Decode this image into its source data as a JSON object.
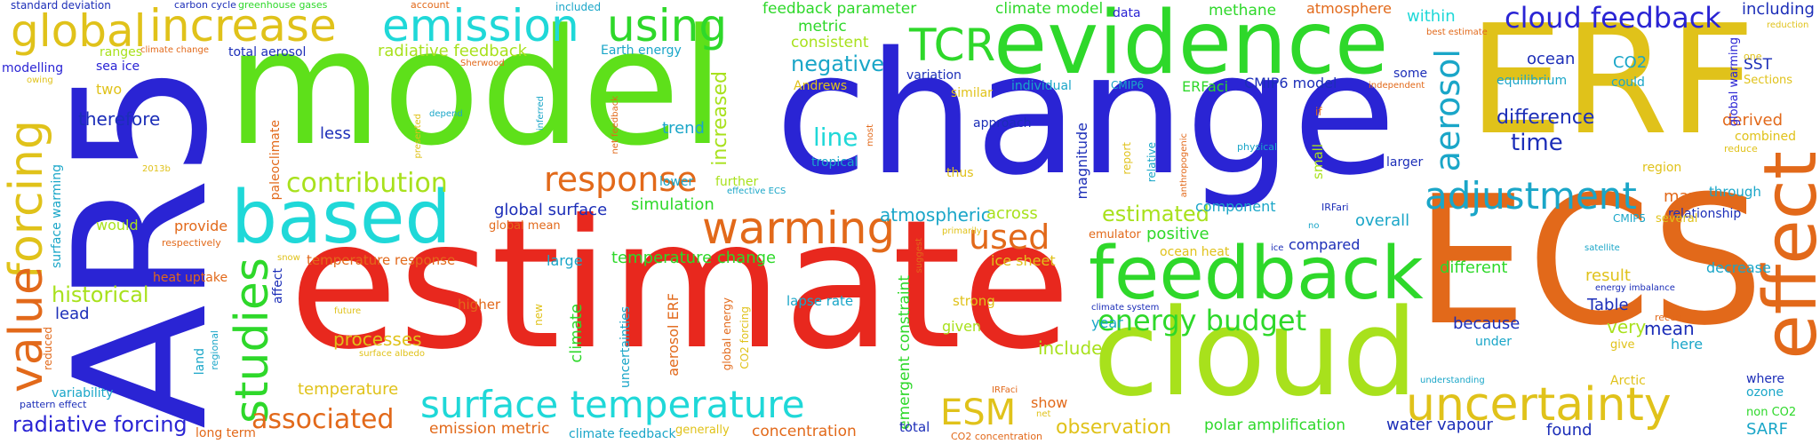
{
  "palette": {
    "red": "#e8281e",
    "blue": "#2a24d4",
    "green": "#5ee01a",
    "lime": "#a8e11c",
    "yellow": "#e0c21a",
    "orange": "#e2691a",
    "cyan": "#1fd8d8",
    "teal": "#1aa6c8",
    "bright_green": "#2ed82a",
    "navy": "#1c2eb8"
  },
  "words": {
    "estimate": "estimate",
    "change": "change",
    "model": "model",
    "ECS": "ECS",
    "ERF": "ERF",
    "AR5": "AR5",
    "cloud": "cloud",
    "evidence": "evidence",
    "feedback": "feedback",
    "based": "based",
    "effect": "effect",
    "emission": "emission",
    "increase": "increase",
    "using": "using",
    "forcing": "forcing",
    "value": "value",
    "studies": "studies",
    "global": "global",
    "uncertainty": "uncertainty",
    "TCR": "TCR",
    "warming": "warming",
    "response": "response",
    "adjustment": "adjustment",
    "surface_temperature": "surface temperature",
    "cloud_feedback": "cloud feedback",
    "contribution": "contribution",
    "aerosol": "aerosol",
    "used": "used",
    "energy_budget": "energy budget",
    "associated": "associated",
    "ESM": "ESM",
    "radiative_forcing": "radiative forcing",
    "historical": "historical",
    "time": "time",
    "difference": "difference",
    "line": "line",
    "negative": "negative",
    "estimated": "estimated",
    "atmospheric": "atmospheric",
    "across": "across",
    "processes": "processes",
    "temperature": "temperature",
    "include": "include",
    "observation": "observation",
    "emission_metric": "emission metric",
    "polar_amplification": "polar amplification",
    "water_vapour": "water vapour",
    "found": "found",
    "SARF": "SARF",
    "mean": "mean",
    "here": "here",
    "very": "very",
    "because": "because",
    "under": "under",
    "result": "result",
    "Table": "Table",
    "different": "different",
    "decrease": "decrease",
    "derived": "derived",
    "combined": "combined",
    "reduce": "reduce",
    "region": "region",
    "may": "may",
    "through": "through",
    "relationship": "relationship",
    "several": "several",
    "CMIP5": "CMIP5",
    "satellite": "satellite",
    "ocean": "ocean",
    "CO2": "CO2",
    "equilibrium": "equilibrium",
    "could": "could",
    "global_warming": "global warming",
    "SST": "SST",
    "Sections": "Sections",
    "one": "one",
    "including": "including",
    "reduction": "reduction",
    "within": "within",
    "best_estimate": "best estimate",
    "some": "some",
    "independent": "independent",
    "atmosphere": "atmosphere",
    "methane": "methane",
    "data": "data",
    "climate_model": "climate model",
    "feedback_parameter": "feedback parameter",
    "metric": "metric",
    "consistent": "consistent",
    "included": "included",
    "account": "account",
    "carbon_cycle": "carbon cycle",
    "greenhouse_gases": "greenhouse gases",
    "standard_deviation": "standard deviation",
    "modelling": "modelling",
    "sea_ice": "sea ice",
    "owing": "owing",
    "ranges": "ranges",
    "climate_change": "climate change",
    "total_aerosol": "total aerosol",
    "radiative_feedback": "radiative feedback",
    "Earth_energy": "Earth energy",
    "Sherwood": "Sherwood",
    "two": "two",
    "therefore": "therefore",
    "less": "less",
    "depend": "depend",
    "paleoclimate": "paleoclimate",
    "surface_warming": "surface warming",
    "would": "would",
    "provide": "provide",
    "respectively": "respectively",
    "heat_uptake": "heat uptake",
    "affect": "affect",
    "snow": "snow",
    "lead": "lead",
    "reduced": "reduced",
    "land": "land",
    "regional": "regional",
    "variability": "variability",
    "pattern_effect": "pattern effect",
    "long_term": "long term",
    "2013b": "2013b",
    "inferred": "inferred",
    "net_feedback": "net feedback",
    "presented": "presented",
    "global_surface": "global surface",
    "simulation": "simulation",
    "global_mean": "global mean",
    "large": "large",
    "temperature_response": "temperature response",
    "temperature_change": "temperature change",
    "lapse_rate": "lapse rate",
    "higher": "higher",
    "new": "new",
    "uncertainties": "uncertainties",
    "climate": "climate",
    "future": "future",
    "surface_albedo": "surface albedo",
    "aerosol_ERF": "aerosol ERF",
    "global_energy": "global energy",
    "CO2_forcing": "CO2 forcing",
    "increased": "increased",
    "further": "further",
    "effective_ECS": "effective ECS",
    "trend": "trend",
    "lower": "lower",
    "Andrews": "Andrews",
    "similar": "similar",
    "most": "most",
    "tropical": "tropical",
    "variation": "variation",
    "approach": "approach",
    "thus": "thus",
    "suggest": "suggest",
    "primarily": "primarily",
    "strong": "strong",
    "given": "given",
    "emergent_constraint": "emergent constraint",
    "concentration": "concentration",
    "generally": "generally",
    "climate_feedback": "climate feedback",
    "total": "total",
    "CO2_concentration": "CO2 concentration",
    "show": "show",
    "net": "net",
    "IRFaci": "IRFaci",
    "ice_sheet": "ice sheet",
    "emulator": "emulator",
    "year": "year",
    "climate_system": "climate system",
    "individual": "individual",
    "magnitude": "magnitude",
    "CMIP6": "CMIP6",
    "ERFaci": "ERFaci",
    "CMIP6_model": "CMIP6 model",
    "if": "if",
    "report": "report",
    "relative": "relative",
    "anthropogenic": "anthropogenic",
    "physical": "physical",
    "small": "small",
    "larger": "larger",
    "component": "component",
    "no": "no",
    "IRFari": "IRFari",
    "overall": "overall",
    "positive": "positive",
    "ocean_heat": "ocean heat",
    "ice": "ice",
    "compared": "compared",
    "understanding": "understanding",
    "Arctic": "Arctic",
    "recent": "recent",
    "give": "give",
    "energy_imbalance": "energy imbalance",
    "where": "where",
    "ozone": "ozone",
    "non_CO2": "non CO2"
  }
}
